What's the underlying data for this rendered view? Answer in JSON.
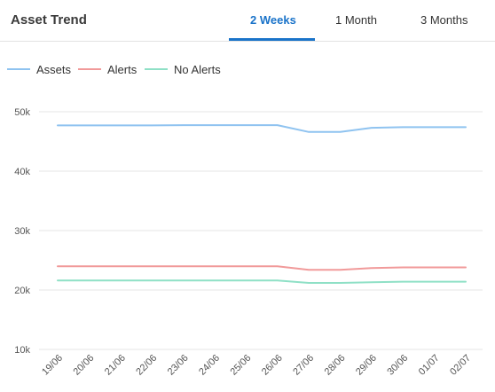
{
  "header": {
    "title": "Asset Trend",
    "tabs": [
      {
        "label": "2 Weeks",
        "active": true
      },
      {
        "label": "1 Month",
        "active": false
      },
      {
        "label": "3 Months",
        "active": false
      }
    ]
  },
  "colors": {
    "accent": "#1a73c9",
    "assets": "#8fc3f0",
    "alerts": "#f19a9a",
    "no_alerts": "#8fe0c6",
    "grid": "#e6e6e6"
  },
  "chart_data": {
    "type": "line",
    "categories": [
      "19/06",
      "20/06",
      "21/06",
      "22/06",
      "23/06",
      "24/06",
      "25/06",
      "26/06",
      "27/06",
      "28/06",
      "29/06",
      "30/06",
      "01/07",
      "02/07"
    ],
    "yticks": [
      "10k",
      "20k",
      "30k",
      "40k",
      "50k"
    ],
    "ylim": [
      10000,
      50000
    ],
    "grid": true,
    "legend_position": "top-left",
    "series": [
      {
        "name": "Assets",
        "color": "#8fc3f0",
        "values": [
          47700,
          47700,
          47700,
          47700,
          47750,
          47750,
          47750,
          47750,
          46600,
          46600,
          47300,
          47400,
          47400,
          47400
        ]
      },
      {
        "name": "Alerts",
        "color": "#f19a9a",
        "values": [
          24000,
          24000,
          24000,
          24000,
          24000,
          24000,
          24000,
          24000,
          23400,
          23400,
          23700,
          23800,
          23800,
          23800
        ]
      },
      {
        "name": "No Alerts",
        "color": "#8fe0c6",
        "values": [
          21600,
          21600,
          21600,
          21600,
          21600,
          21600,
          21600,
          21600,
          21200,
          21200,
          21300,
          21400,
          21400,
          21400
        ]
      }
    ]
  }
}
